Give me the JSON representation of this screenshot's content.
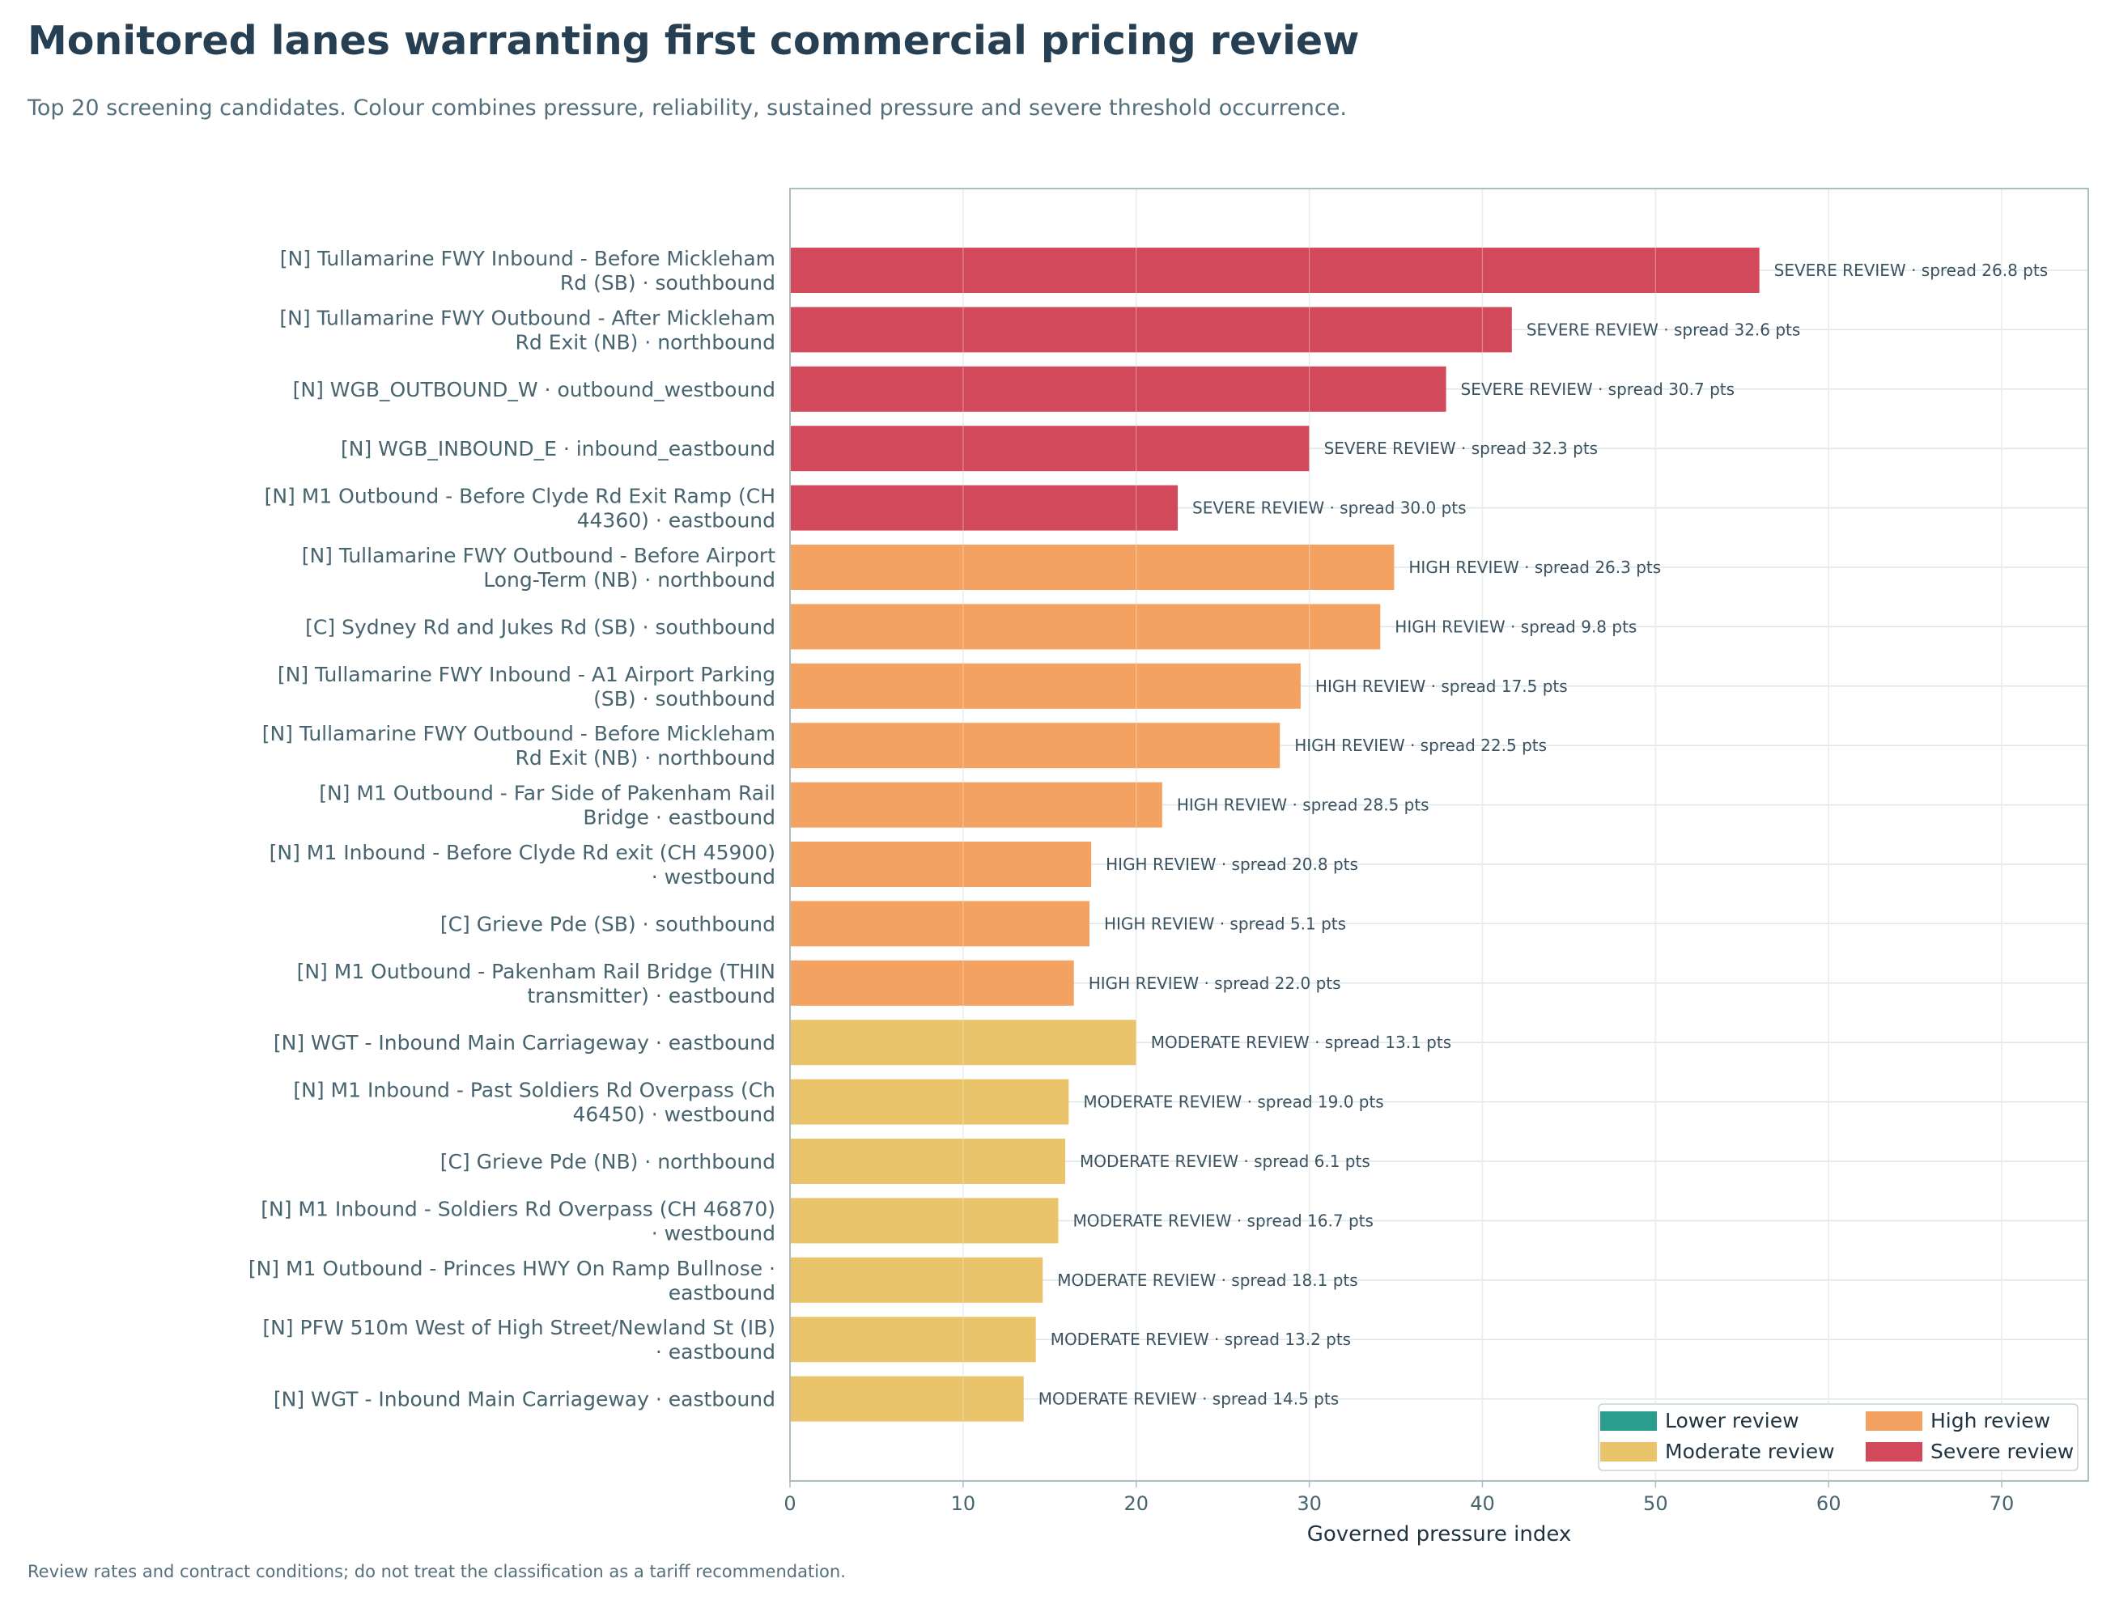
{
  "title": "Monitored lanes warranting first commercial pricing review",
  "subtitle": "Top 20 screening candidates. Colour combines pressure, reliability, sustained pressure and severe threshold occurrence.",
  "footnote": "Review rates and contract conditions; do not treat the classification as a tariff recommendation.",
  "colors": {
    "lower": "#2a9d8f",
    "moderate": "#e9c46a",
    "high": "#f4a261",
    "severe": "#d1495b",
    "grid": "#dde6e7",
    "frame": "#a9bec0"
  },
  "chart_data": {
    "type": "bar",
    "orientation": "horizontal",
    "title": "Monitored lanes warranting first commercial pricing review",
    "subtitle": "Top 20 screening candidates. Colour combines pressure, reliability, sustained pressure and severe threshold occurrence.",
    "xlabel": "Governed pressure index",
    "ylabel": "",
    "xlim": [
      0,
      75
    ],
    "xticks": [
      0,
      10,
      20,
      30,
      40,
      50,
      60,
      70
    ],
    "grid": true,
    "legend_position": "bottom-right",
    "legend": [
      {
        "key": "lower",
        "label": "Lower review"
      },
      {
        "key": "high",
        "label": "High review"
      },
      {
        "key": "moderate",
        "label": "Moderate review"
      },
      {
        "key": "severe",
        "label": "Severe review"
      }
    ],
    "bars": [
      {
        "label": [
          "[N] Tullamarine FWY Inbound - Before Mickleham",
          "Rd (SB) · southbound"
        ],
        "value": 56.0,
        "class": "severe",
        "annotation": "SEVERE REVIEW · spread 26.8 pts"
      },
      {
        "label": [
          "[N] Tullamarine FWY Outbound - After Mickleham",
          "Rd Exit (NB) · northbound"
        ],
        "value": 41.7,
        "class": "severe",
        "annotation": "SEVERE REVIEW · spread 32.6 pts"
      },
      {
        "label": [
          "[N] WGB_OUTBOUND_W · outbound_westbound"
        ],
        "value": 37.9,
        "class": "severe",
        "annotation": "SEVERE REVIEW · spread 30.7 pts"
      },
      {
        "label": [
          "[N] WGB_INBOUND_E · inbound_eastbound"
        ],
        "value": 30.0,
        "class": "severe",
        "annotation": "SEVERE REVIEW · spread 32.3 pts"
      },
      {
        "label": [
          "[N] M1 Outbound - Before Clyde Rd Exit Ramp (CH",
          "44360) · eastbound"
        ],
        "value": 22.4,
        "class": "severe",
        "annotation": "SEVERE REVIEW · spread 30.0 pts"
      },
      {
        "label": [
          "[N] Tullamarine FWY Outbound - Before Airport",
          "Long-Term (NB) · northbound"
        ],
        "value": 34.9,
        "class": "high",
        "annotation": "HIGH REVIEW · spread 26.3 pts"
      },
      {
        "label": [
          "[C] Sydney Rd and Jukes Rd (SB) · southbound"
        ],
        "value": 34.1,
        "class": "high",
        "annotation": "HIGH REVIEW · spread 9.8 pts"
      },
      {
        "label": [
          "[N] Tullamarine FWY Inbound - A1 Airport Parking",
          "(SB) · southbound"
        ],
        "value": 29.5,
        "class": "high",
        "annotation": "HIGH REVIEW · spread 17.5 pts"
      },
      {
        "label": [
          "[N] Tullamarine FWY Outbound - Before Mickleham",
          "Rd Exit (NB) · northbound"
        ],
        "value": 28.3,
        "class": "high",
        "annotation": "HIGH REVIEW · spread 22.5 pts"
      },
      {
        "label": [
          "[N] M1 Outbound - Far Side of Pakenham Rail",
          "Bridge · eastbound"
        ],
        "value": 21.5,
        "class": "high",
        "annotation": "HIGH REVIEW · spread 28.5 pts"
      },
      {
        "label": [
          "[N] M1 Inbound - Before Clyde Rd exit (CH 45900)",
          "· westbound"
        ],
        "value": 17.4,
        "class": "high",
        "annotation": "HIGH REVIEW · spread 20.8 pts"
      },
      {
        "label": [
          "[C] Grieve Pde (SB) · southbound"
        ],
        "value": 17.3,
        "class": "high",
        "annotation": "HIGH REVIEW · spread 5.1 pts"
      },
      {
        "label": [
          "[N] M1 Outbound - Pakenham Rail Bridge (THIN",
          "transmitter) · eastbound"
        ],
        "value": 16.4,
        "class": "high",
        "annotation": "HIGH REVIEW · spread 22.0 pts"
      },
      {
        "label": [
          "[N] WGT - Inbound Main Carriageway · eastbound"
        ],
        "value": 20.0,
        "class": "moderate",
        "annotation": "MODERATE REVIEW · spread 13.1 pts"
      },
      {
        "label": [
          "[N] M1 Inbound - Past Soldiers Rd Overpass (Ch",
          "46450) · westbound"
        ],
        "value": 16.1,
        "class": "moderate",
        "annotation": "MODERATE REVIEW · spread 19.0 pts"
      },
      {
        "label": [
          "[C] Grieve Pde (NB) · northbound"
        ],
        "value": 15.9,
        "class": "moderate",
        "annotation": "MODERATE REVIEW · spread 6.1 pts"
      },
      {
        "label": [
          "[N] M1 Inbound - Soldiers Rd Overpass (CH 46870)",
          "· westbound"
        ],
        "value": 15.5,
        "class": "moderate",
        "annotation": "MODERATE REVIEW · spread 16.7 pts"
      },
      {
        "label": [
          "[N] M1 Outbound - Princes HWY On Ramp Bullnose ·",
          "eastbound"
        ],
        "value": 14.6,
        "class": "moderate",
        "annotation": "MODERATE REVIEW · spread 18.1 pts"
      },
      {
        "label": [
          "[N] PFW 510m West of High Street/Newland St (IB)",
          "· eastbound"
        ],
        "value": 14.2,
        "class": "moderate",
        "annotation": "MODERATE REVIEW · spread 13.2 pts"
      },
      {
        "label": [
          "[N] WGT - Inbound Main Carriageway · eastbound"
        ],
        "value": 13.5,
        "class": "moderate",
        "annotation": "MODERATE REVIEW · spread 14.5 pts"
      }
    ]
  }
}
